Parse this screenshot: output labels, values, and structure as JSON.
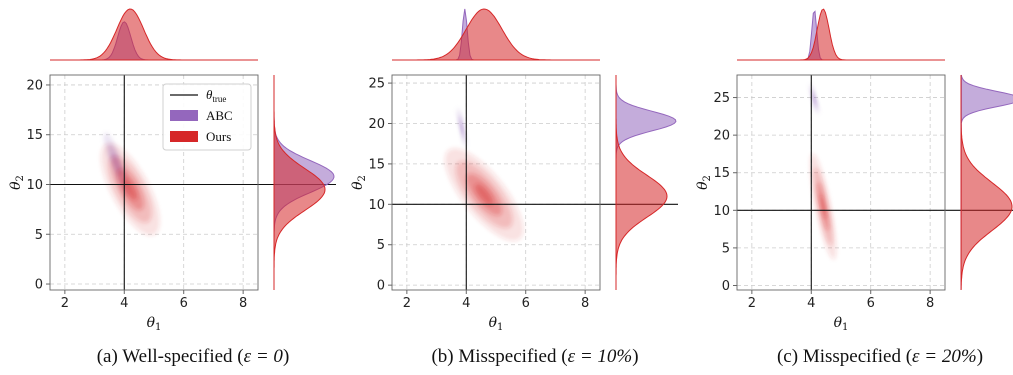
{
  "colors": {
    "abc": "#9467bd",
    "ours": "#d62728",
    "truth": "#111111",
    "grid": "#cccccc",
    "spine": "#666666"
  },
  "legend": {
    "items": [
      {
        "label_main": "θ",
        "label_sub": "true",
        "kind": "line"
      },
      {
        "label_main": "ABC",
        "kind": "patch-abc"
      },
      {
        "label_main": "Ours",
        "kind": "patch-ours"
      }
    ]
  },
  "chart_data": [
    {
      "type": "scatter",
      "subtype": "kde-joint-plot",
      "panel": "a",
      "caption_prefix": "(a) Well-specified (",
      "caption_math": "ε = 0",
      "caption_suffix": ")",
      "xlabel": "θ1",
      "ylabel": "θ2",
      "xlim": [
        1.5,
        8.5
      ],
      "ylim": [
        -0.6,
        21
      ],
      "xticks": [
        2,
        4,
        6,
        8
      ],
      "yticks": [
        0,
        5,
        10,
        15,
        20
      ],
      "theta_true": [
        4,
        10
      ],
      "grid": true,
      "legend_position": "upper right",
      "series": [
        {
          "name": "ABC",
          "mean": [
            3.75,
            12.0
          ],
          "std": [
            0.22,
            1.6
          ],
          "corr": -0.85,
          "marginal_x_mode": 4.0,
          "marginal_y_mode": 10.8
        },
        {
          "name": "Ours",
          "mean": [
            4.2,
            9.5
          ],
          "std": [
            0.45,
            2.1
          ],
          "corr": -0.7,
          "marginal_x_mode": 4.2,
          "marginal_y_mode": 9.5
        }
      ]
    },
    {
      "type": "scatter",
      "subtype": "kde-joint-plot",
      "panel": "b",
      "caption_prefix": "(b) Misspecified (",
      "caption_math": "ε = 10%",
      "caption_suffix": ")",
      "xlabel": "θ1",
      "ylabel": "θ2",
      "xlim": [
        1.5,
        8.5
      ],
      "ylim": [
        -0.6,
        26
      ],
      "xticks": [
        2,
        4,
        6,
        8
      ],
      "yticks": [
        0,
        5,
        10,
        15,
        20,
        25
      ],
      "theta_true": [
        4,
        10
      ],
      "grid": true,
      "series": [
        {
          "name": "ABC",
          "mean": [
            3.85,
            19.5
          ],
          "std": [
            0.08,
            1.2
          ],
          "corr": -0.8,
          "marginal_x_mode": 3.95,
          "marginal_y_mode": 20.3
        },
        {
          "name": "Ours",
          "mean": [
            4.6,
            11.2
          ],
          "std": [
            0.6,
            2.6
          ],
          "corr": -0.75,
          "marginal_x_mode": 4.6,
          "marginal_y_mode": 11.0
        }
      ]
    },
    {
      "type": "scatter",
      "subtype": "kde-joint-plot",
      "panel": "c",
      "caption_prefix": "(c) Misspecified (",
      "caption_math": "ε = 20%",
      "caption_suffix": ")",
      "xlabel": "θ1",
      "ylabel": "θ2",
      "xlim": [
        1.5,
        8.5
      ],
      "ylim": [
        -0.6,
        28
      ],
      "xticks": [
        2,
        4,
        6,
        8
      ],
      "yticks": [
        0,
        5,
        10,
        15,
        20,
        25
      ],
      "theta_true": [
        4,
        10
      ],
      "grid": true,
      "series": [
        {
          "name": "ABC",
          "mean": [
            4.1,
            24.8
          ],
          "std": [
            0.08,
            1.0
          ],
          "corr": -0.8,
          "marginal_x_mode": 4.1,
          "marginal_y_mode": 24.8
        },
        {
          "name": "Ours",
          "mean": [
            4.4,
            10.5
          ],
          "std": [
            0.2,
            3.2
          ],
          "corr": -0.8,
          "marginal_x_mode": 4.4,
          "marginal_y_mode": 10.5
        }
      ]
    }
  ]
}
